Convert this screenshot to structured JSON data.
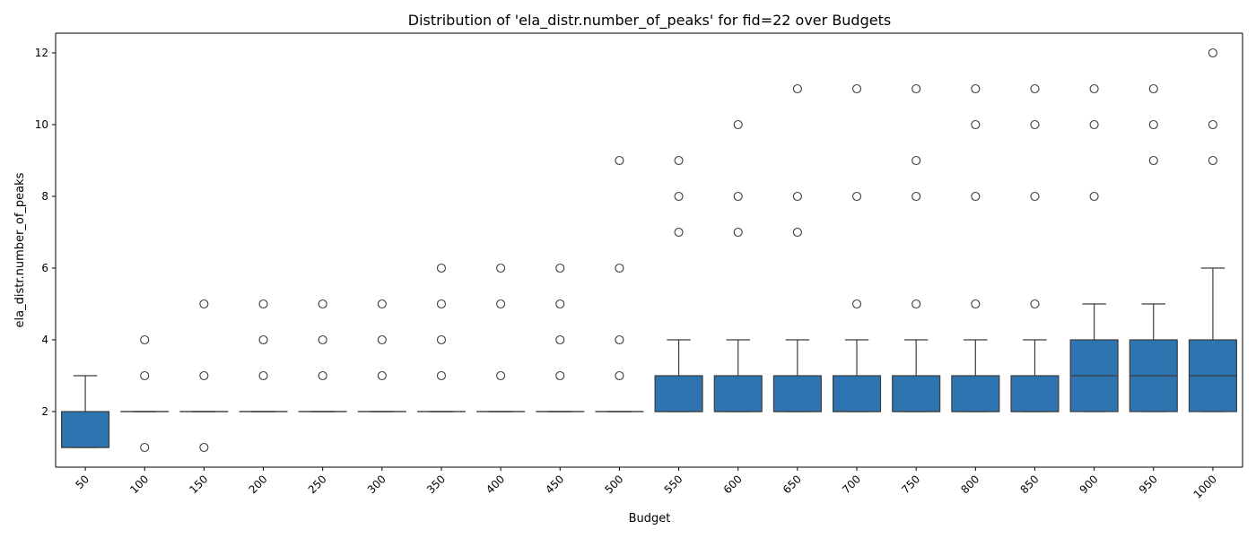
{
  "chart_data": {
    "type": "box",
    "title": "Distribution of 'ela_distr.number_of_peaks' for fid=22 over Budgets",
    "xlabel": "Budget",
    "ylabel": "ela_distr.number_of_peaks",
    "ylim": [
      0.45,
      12.55
    ],
    "yticks": [
      2,
      4,
      6,
      8,
      10,
      12
    ],
    "box_color": "#2e74b0",
    "edge_color": "#3d3d3d",
    "grid": false,
    "legend": "none",
    "categories": [
      "50",
      "100",
      "150",
      "200",
      "250",
      "300",
      "350",
      "400",
      "450",
      "500",
      "550",
      "600",
      "650",
      "700",
      "750",
      "800",
      "850",
      "900",
      "950",
      "1000"
    ],
    "boxes": [
      {
        "q1": 1,
        "median": 1,
        "q3": 2,
        "whislo": 1,
        "whishi": 3,
        "fliers": []
      },
      {
        "q1": 2,
        "median": 2,
        "q3": 2,
        "whislo": 2,
        "whishi": 2,
        "fliers": [
          1,
          3,
          4
        ]
      },
      {
        "q1": 2,
        "median": 2,
        "q3": 2,
        "whislo": 2,
        "whishi": 2,
        "fliers": [
          1,
          3,
          5
        ]
      },
      {
        "q1": 2,
        "median": 2,
        "q3": 2,
        "whislo": 2,
        "whishi": 2,
        "fliers": [
          3,
          4,
          5
        ]
      },
      {
        "q1": 2,
        "median": 2,
        "q3": 2,
        "whislo": 2,
        "whishi": 2,
        "fliers": [
          3,
          4,
          5
        ]
      },
      {
        "q1": 2,
        "median": 2,
        "q3": 2,
        "whislo": 2,
        "whishi": 2,
        "fliers": [
          3,
          4,
          5
        ]
      },
      {
        "q1": 2,
        "median": 2,
        "q3": 2,
        "whislo": 2,
        "whishi": 2,
        "fliers": [
          3,
          4,
          5,
          6
        ]
      },
      {
        "q1": 2,
        "median": 2,
        "q3": 2,
        "whislo": 2,
        "whishi": 2,
        "fliers": [
          3,
          5,
          6
        ]
      },
      {
        "q1": 2,
        "median": 2,
        "q3": 2,
        "whislo": 2,
        "whishi": 2,
        "fliers": [
          3,
          4,
          5,
          6
        ]
      },
      {
        "q1": 2,
        "median": 2,
        "q3": 2,
        "whislo": 2,
        "whishi": 2,
        "fliers": [
          3,
          4,
          6,
          9
        ]
      },
      {
        "q1": 2,
        "median": 2,
        "q3": 3,
        "whislo": 2,
        "whishi": 4,
        "fliers": [
          7,
          8,
          9
        ]
      },
      {
        "q1": 2,
        "median": 2,
        "q3": 3,
        "whislo": 2,
        "whishi": 4,
        "fliers": [
          7,
          8,
          10
        ]
      },
      {
        "q1": 2,
        "median": 2,
        "q3": 3,
        "whislo": 2,
        "whishi": 4,
        "fliers": [
          7,
          8,
          11
        ]
      },
      {
        "q1": 2,
        "median": 2,
        "q3": 3,
        "whislo": 2,
        "whishi": 4,
        "fliers": [
          5,
          8,
          11
        ]
      },
      {
        "q1": 2,
        "median": 2,
        "q3": 3,
        "whislo": 2,
        "whishi": 4,
        "fliers": [
          5,
          8,
          9,
          11
        ]
      },
      {
        "q1": 2,
        "median": 2,
        "q3": 3,
        "whislo": 2,
        "whishi": 4,
        "fliers": [
          5,
          8,
          10,
          11
        ]
      },
      {
        "q1": 2,
        "median": 2,
        "q3": 3,
        "whislo": 2,
        "whishi": 4,
        "fliers": [
          5,
          8,
          10,
          11
        ]
      },
      {
        "q1": 2,
        "median": 3,
        "q3": 4,
        "whislo": 2,
        "whishi": 5,
        "fliers": [
          8,
          10,
          11
        ]
      },
      {
        "q1": 2,
        "median": 3,
        "q3": 4,
        "whislo": 2,
        "whishi": 5,
        "fliers": [
          9,
          10,
          11
        ]
      },
      {
        "q1": 2,
        "median": 3,
        "q3": 4,
        "whislo": 2,
        "whishi": 6,
        "fliers": [
          9,
          10,
          12
        ]
      }
    ]
  }
}
